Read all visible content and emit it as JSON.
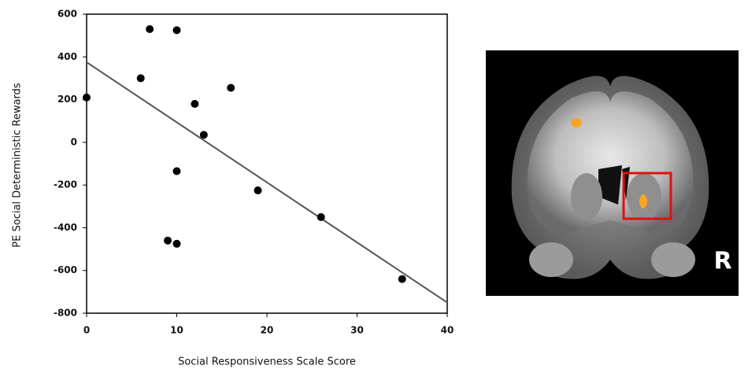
{
  "chart_data": {
    "type": "scatter",
    "xlabel": "Social Responsiveness Scale Score",
    "ylabel": "PE Social Deterministic Rewards",
    "x": [
      0,
      6,
      7,
      10,
      12,
      16,
      13,
      10,
      19,
      26,
      35,
      9,
      10
    ],
    "values": [
      210,
      300,
      530,
      525,
      180,
      255,
      35,
      -135,
      -225,
      -350,
      -640,
      -460,
      -475
    ],
    "color": "#000000",
    "fit": {
      "x": [
        0,
        40
      ],
      "y": [
        375,
        -750
      ],
      "color": "#555555"
    },
    "xlim": [
      0,
      40
    ],
    "xticks": [
      0,
      10,
      20,
      30,
      40
    ],
    "ylim": [
      -800,
      600
    ],
    "yticks": [
      -800,
      -600,
      -400,
      -200,
      0,
      200,
      400,
      600
    ]
  },
  "image": {
    "label": "R"
  }
}
